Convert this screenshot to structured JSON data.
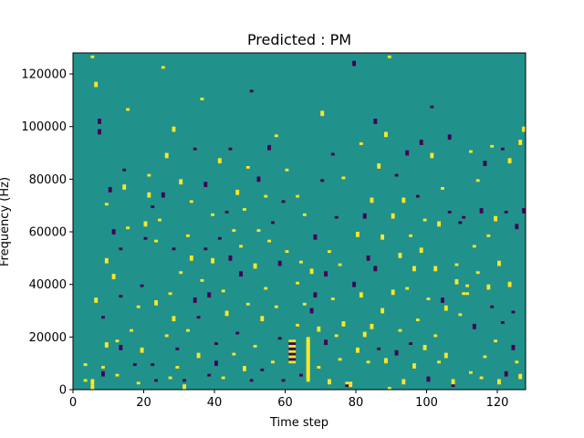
{
  "chart_data": {
    "type": "heatmap",
    "title": "Predicted : PM",
    "xlabel": "Time step",
    "ylabel": "Frequency (Hz)",
    "xlim": [
      0,
      128
    ],
    "ylim": [
      0,
      128000
    ],
    "x_ticks": [
      0,
      20,
      40,
      60,
      80,
      100,
      120
    ],
    "y_ticks": [
      0,
      20000,
      40000,
      60000,
      80000,
      100000,
      120000
    ],
    "y_tick_labels": [
      "0",
      "20000",
      "40000",
      "60000",
      "80000",
      "100000",
      "120000"
    ],
    "grid": false,
    "colormap": "viridis",
    "background_color": "#21918c",
    "high_color": "#fde725",
    "low_color": "#440154",
    "n_time_steps": 128,
    "n_freq_bins": 128,
    "freq_bin_hz": 1000,
    "cells": [
      [
        3,
        3,
        1
      ],
      [
        3,
        9,
        1
      ],
      [
        5,
        126,
        1
      ],
      [
        5,
        0,
        2
      ],
      [
        5,
        2,
        2
      ],
      [
        6,
        115,
        2
      ],
      [
        6,
        33,
        2
      ],
      [
        7,
        101,
        2
      ],
      [
        7,
        97,
        2
      ],
      [
        8,
        8,
        1
      ],
      [
        8,
        5,
        2
      ],
      [
        8,
        27,
        1
      ],
      [
        9,
        16,
        2
      ],
      [
        9,
        48,
        2
      ],
      [
        9,
        70,
        1
      ],
      [
        10,
        75,
        2
      ],
      [
        11,
        59,
        2
      ],
      [
        11,
        42,
        2
      ],
      [
        12,
        18,
        1
      ],
      [
        12,
        5,
        1
      ],
      [
        13,
        53,
        1
      ],
      [
        13,
        35,
        1
      ],
      [
        13,
        15,
        2
      ],
      [
        14,
        76,
        2
      ],
      [
        14,
        83,
        1
      ],
      [
        15,
        61,
        1
      ],
      [
        15,
        106,
        1
      ],
      [
        16,
        22,
        1
      ],
      [
        17,
        9,
        1
      ],
      [
        18,
        31,
        1
      ],
      [
        18,
        2,
        1
      ],
      [
        19,
        14,
        2
      ],
      [
        19,
        39,
        1
      ],
      [
        20,
        57,
        1
      ],
      [
        20,
        62,
        2
      ],
      [
        21,
        81,
        1
      ],
      [
        21,
        73,
        2
      ],
      [
        22,
        69,
        1
      ],
      [
        22,
        9,
        1
      ],
      [
        23,
        3,
        1
      ],
      [
        23,
        56,
        1
      ],
      [
        23,
        32,
        2
      ],
      [
        24,
        64,
        1
      ],
      [
        25,
        73,
        2
      ],
      [
        25,
        122,
        1
      ],
      [
        26,
        20,
        1
      ],
      [
        26,
        88,
        2
      ],
      [
        27,
        4,
        1
      ],
      [
        27,
        36,
        1
      ],
      [
        28,
        26,
        2
      ],
      [
        28,
        98,
        2
      ],
      [
        28,
        53,
        1
      ],
      [
        29,
        8,
        1
      ],
      [
        29,
        15,
        1
      ],
      [
        30,
        78,
        2
      ],
      [
        30,
        44,
        1
      ],
      [
        31,
        0,
        2
      ],
      [
        31,
        3,
        1
      ],
      [
        32,
        22,
        1
      ],
      [
        32,
        58,
        1
      ],
      [
        33,
        71,
        1
      ],
      [
        33,
        49,
        2
      ],
      [
        34,
        33,
        2
      ],
      [
        34,
        91,
        1
      ],
      [
        35,
        27,
        1
      ],
      [
        35,
        12,
        2
      ],
      [
        36,
        110,
        1
      ],
      [
        36,
        41,
        1
      ],
      [
        37,
        77,
        2
      ],
      [
        37,
        53,
        1
      ],
      [
        38,
        35,
        2
      ],
      [
        38,
        5,
        1
      ],
      [
        39,
        48,
        2
      ],
      [
        39,
        66,
        1
      ],
      [
        40,
        17,
        1
      ],
      [
        40,
        9,
        2
      ],
      [
        41,
        86,
        2
      ],
      [
        41,
        57,
        1
      ],
      [
        42,
        4,
        1
      ],
      [
        42,
        37,
        1
      ],
      [
        43,
        67,
        1
      ],
      [
        43,
        28,
        2
      ],
      [
        44,
        91,
        1
      ],
      [
        44,
        49,
        2
      ],
      [
        45,
        13,
        1
      ],
      [
        45,
        60,
        1
      ],
      [
        46,
        74,
        2
      ],
      [
        46,
        21,
        1
      ],
      [
        47,
        43,
        2
      ],
      [
        47,
        54,
        1
      ],
      [
        48,
        7,
        2
      ],
      [
        48,
        68,
        1
      ],
      [
        49,
        32,
        1
      ],
      [
        49,
        84,
        1
      ],
      [
        50,
        113,
        1
      ],
      [
        50,
        3,
        1
      ],
      [
        51,
        46,
        2
      ],
      [
        51,
        16,
        1
      ],
      [
        52,
        60,
        1
      ],
      [
        52,
        79,
        2
      ],
      [
        53,
        26,
        2
      ],
      [
        53,
        7,
        1
      ],
      [
        54,
        38,
        1
      ],
      [
        54,
        73,
        1
      ],
      [
        55,
        56,
        1
      ],
      [
        55,
        91,
        2
      ],
      [
        56,
        10,
        1
      ],
      [
        56,
        63,
        1
      ],
      [
        57,
        31,
        1
      ],
      [
        57,
        96,
        1
      ],
      [
        58,
        19,
        1
      ],
      [
        58,
        47,
        2
      ],
      [
        59,
        71,
        1
      ],
      [
        59,
        3,
        1
      ],
      [
        60,
        83,
        1
      ],
      [
        60,
        52,
        1
      ],
      [
        61,
        10,
        1
      ],
      [
        61,
        11,
        1
      ],
      [
        61,
        12,
        1
      ],
      [
        61,
        13,
        1
      ],
      [
        61,
        14,
        1
      ],
      [
        61,
        15,
        1
      ],
      [
        61,
        16,
        1
      ],
      [
        61,
        17,
        1
      ],
      [
        61,
        18,
        1
      ],
      [
        62,
        10,
        1
      ],
      [
        62,
        11,
        1
      ],
      [
        62,
        12,
        1
      ],
      [
        62,
        13,
        1
      ],
      [
        62,
        14,
        1
      ],
      [
        62,
        15,
        1
      ],
      [
        62,
        16,
        1
      ],
      [
        62,
        17,
        1
      ],
      [
        62,
        18,
        1
      ],
      [
        63,
        24,
        1
      ],
      [
        63,
        40,
        1
      ],
      [
        63,
        73,
        1
      ],
      [
        64,
        5,
        1
      ],
      [
        64,
        48,
        1
      ],
      [
        65,
        66,
        1
      ],
      [
        65,
        32,
        1
      ],
      [
        66,
        3,
        2
      ],
      [
        66,
        4,
        2
      ],
      [
        66,
        5,
        2
      ],
      [
        66,
        6,
        2
      ],
      [
        66,
        7,
        2
      ],
      [
        66,
        8,
        2
      ],
      [
        66,
        9,
        2
      ],
      [
        66,
        10,
        2
      ],
      [
        66,
        11,
        2
      ],
      [
        66,
        12,
        2
      ],
      [
        66,
        13,
        2
      ],
      [
        66,
        14,
        2
      ],
      [
        66,
        15,
        2
      ],
      [
        66,
        16,
        2
      ],
      [
        66,
        17,
        2
      ],
      [
        66,
        18,
        2
      ],
      [
        67,
        29,
        2
      ],
      [
        67,
        44,
        2
      ],
      [
        68,
        57,
        2
      ],
      [
        68,
        35,
        2
      ],
      [
        69,
        8,
        1
      ],
      [
        69,
        22,
        2
      ],
      [
        70,
        104,
        2
      ],
      [
        70,
        79,
        1
      ],
      [
        71,
        17,
        2
      ],
      [
        71,
        43,
        2
      ],
      [
        72,
        2,
        2
      ],
      [
        72,
        52,
        1
      ],
      [
        73,
        34,
        1
      ],
      [
        73,
        89,
        1
      ],
      [
        74,
        65,
        1
      ],
      [
        74,
        20,
        1
      ],
      [
        75,
        11,
        1
      ],
      [
        75,
        47,
        1
      ],
      [
        76,
        80,
        1
      ],
      [
        76,
        24,
        2
      ],
      [
        77,
        1,
        1
      ],
      [
        77,
        2,
        1
      ],
      [
        78,
        1,
        1
      ],
      [
        78,
        2,
        1
      ],
      [
        79,
        123,
        2
      ],
      [
        79,
        39,
        2
      ],
      [
        80,
        14,
        2
      ],
      [
        80,
        58,
        2
      ],
      [
        81,
        93,
        1
      ],
      [
        81,
        35,
        2
      ],
      [
        82,
        20,
        2
      ],
      [
        82,
        65,
        2
      ],
      [
        83,
        10,
        1
      ],
      [
        83,
        49,
        2
      ],
      [
        84,
        71,
        2
      ],
      [
        84,
        23,
        2
      ],
      [
        85,
        45,
        2
      ],
      [
        85,
        101,
        2
      ],
      [
        86,
        84,
        2
      ],
      [
        86,
        15,
        1
      ],
      [
        87,
        57,
        2
      ],
      [
        87,
        29,
        2
      ],
      [
        88,
        10,
        2
      ],
      [
        88,
        96,
        2
      ],
      [
        89,
        0,
        1
      ],
      [
        89,
        126,
        1
      ],
      [
        90,
        36,
        2
      ],
      [
        90,
        65,
        2
      ],
      [
        91,
        81,
        1
      ],
      [
        91,
        13,
        2
      ],
      [
        92,
        50,
        2
      ],
      [
        92,
        22,
        1
      ],
      [
        93,
        2,
        2
      ],
      [
        93,
        71,
        2
      ],
      [
        94,
        89,
        2
      ],
      [
        94,
        38,
        1
      ],
      [
        95,
        17,
        1
      ],
      [
        95,
        58,
        1
      ],
      [
        96,
        8,
        2
      ],
      [
        96,
        45,
        2
      ],
      [
        97,
        73,
        1
      ],
      [
        97,
        26,
        1
      ],
      [
        98,
        93,
        2
      ],
      [
        98,
        52,
        2
      ],
      [
        99,
        15,
        2
      ],
      [
        99,
        64,
        1
      ],
      [
        100,
        3,
        2
      ],
      [
        100,
        34,
        1
      ],
      [
        101,
        107,
        1
      ],
      [
        101,
        88,
        2
      ],
      [
        102,
        45,
        2
      ],
      [
        102,
        20,
        1
      ],
      [
        103,
        62,
        2
      ],
      [
        103,
        10,
        1
      ],
      [
        104,
        33,
        2
      ],
      [
        104,
        76,
        1
      ],
      [
        105,
        12,
        2
      ],
      [
        105,
        30,
        2
      ],
      [
        106,
        95,
        2
      ],
      [
        106,
        67,
        1
      ],
      [
        107,
        1,
        2
      ],
      [
        107,
        2,
        2
      ],
      [
        108,
        47,
        1
      ],
      [
        108,
        40,
        2
      ],
      [
        109,
        63,
        1
      ],
      [
        109,
        28,
        1
      ],
      [
        110,
        65,
        1
      ],
      [
        110,
        36,
        1
      ],
      [
        111,
        36,
        1
      ],
      [
        111,
        39,
        1
      ],
      [
        112,
        6,
        1
      ],
      [
        112,
        90,
        1
      ],
      [
        113,
        54,
        1
      ],
      [
        113,
        23,
        2
      ],
      [
        114,
        79,
        1
      ],
      [
        114,
        44,
        1
      ],
      [
        115,
        4,
        1
      ],
      [
        115,
        67,
        2
      ],
      [
        116,
        85,
        2
      ],
      [
        116,
        12,
        1
      ],
      [
        117,
        58,
        1
      ],
      [
        117,
        38,
        2
      ],
      [
        118,
        31,
        1
      ],
      [
        118,
        92,
        1
      ],
      [
        119,
        18,
        1
      ],
      [
        119,
        64,
        2
      ],
      [
        120,
        47,
        2
      ],
      [
        120,
        2,
        2
      ],
      [
        121,
        91,
        1
      ],
      [
        121,
        25,
        1
      ],
      [
        122,
        5,
        2
      ],
      [
        122,
        67,
        1
      ],
      [
        123,
        39,
        2
      ],
      [
        123,
        86,
        2
      ],
      [
        124,
        29,
        1
      ],
      [
        124,
        15,
        2
      ],
      [
        125,
        61,
        2
      ],
      [
        125,
        10,
        1
      ],
      [
        126,
        4,
        2
      ],
      [
        126,
        93,
        2
      ],
      [
        127,
        67,
        2
      ],
      [
        127,
        98,
        2
      ]
    ]
  }
}
